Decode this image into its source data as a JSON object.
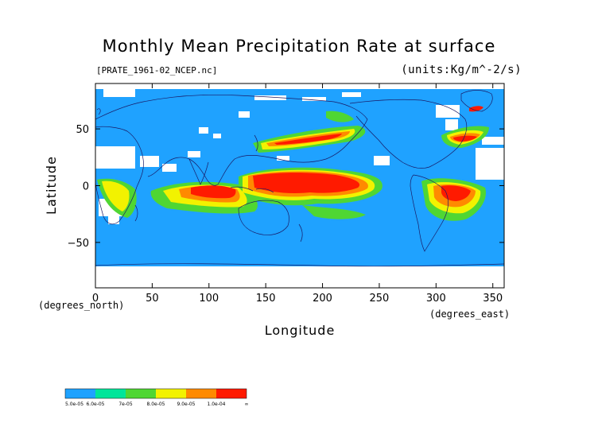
{
  "header": {
    "title": "Monthly Mean Precipitation Rate at surface",
    "dataset": "[PRATE_1961-02_NCEP.nc]",
    "units": "(units:Kg/m^-2/s)"
  },
  "map": {
    "lon_range": [
      0,
      360
    ],
    "lat_range": [
      -90,
      90
    ],
    "x_ticks": [
      "0",
      "50",
      "100",
      "150",
      "200",
      "250",
      "300",
      "350"
    ],
    "y_ticks": [
      "50",
      "0",
      "−50"
    ],
    "xlabel": "Longitude",
    "ylabel": "Latitude",
    "x_unit": "(degrees_east)",
    "y_unit": "(degrees_north)",
    "colors": {
      "background": "#1fa2ff",
      "no_data": "#ffffff",
      "coastline": "#1a1a66"
    }
  },
  "legend": {
    "labels": [
      "5.0e-05",
      "6.0e-05",
      "7e-05",
      "8.0e-05",
      "9.0e-05",
      "1.0e-04",
      "∞"
    ],
    "colors": [
      "#1fa2ff",
      "#00e59a",
      "#4fd633",
      "#f2f200",
      "#ff8a00",
      "#ff1a00"
    ]
  }
}
